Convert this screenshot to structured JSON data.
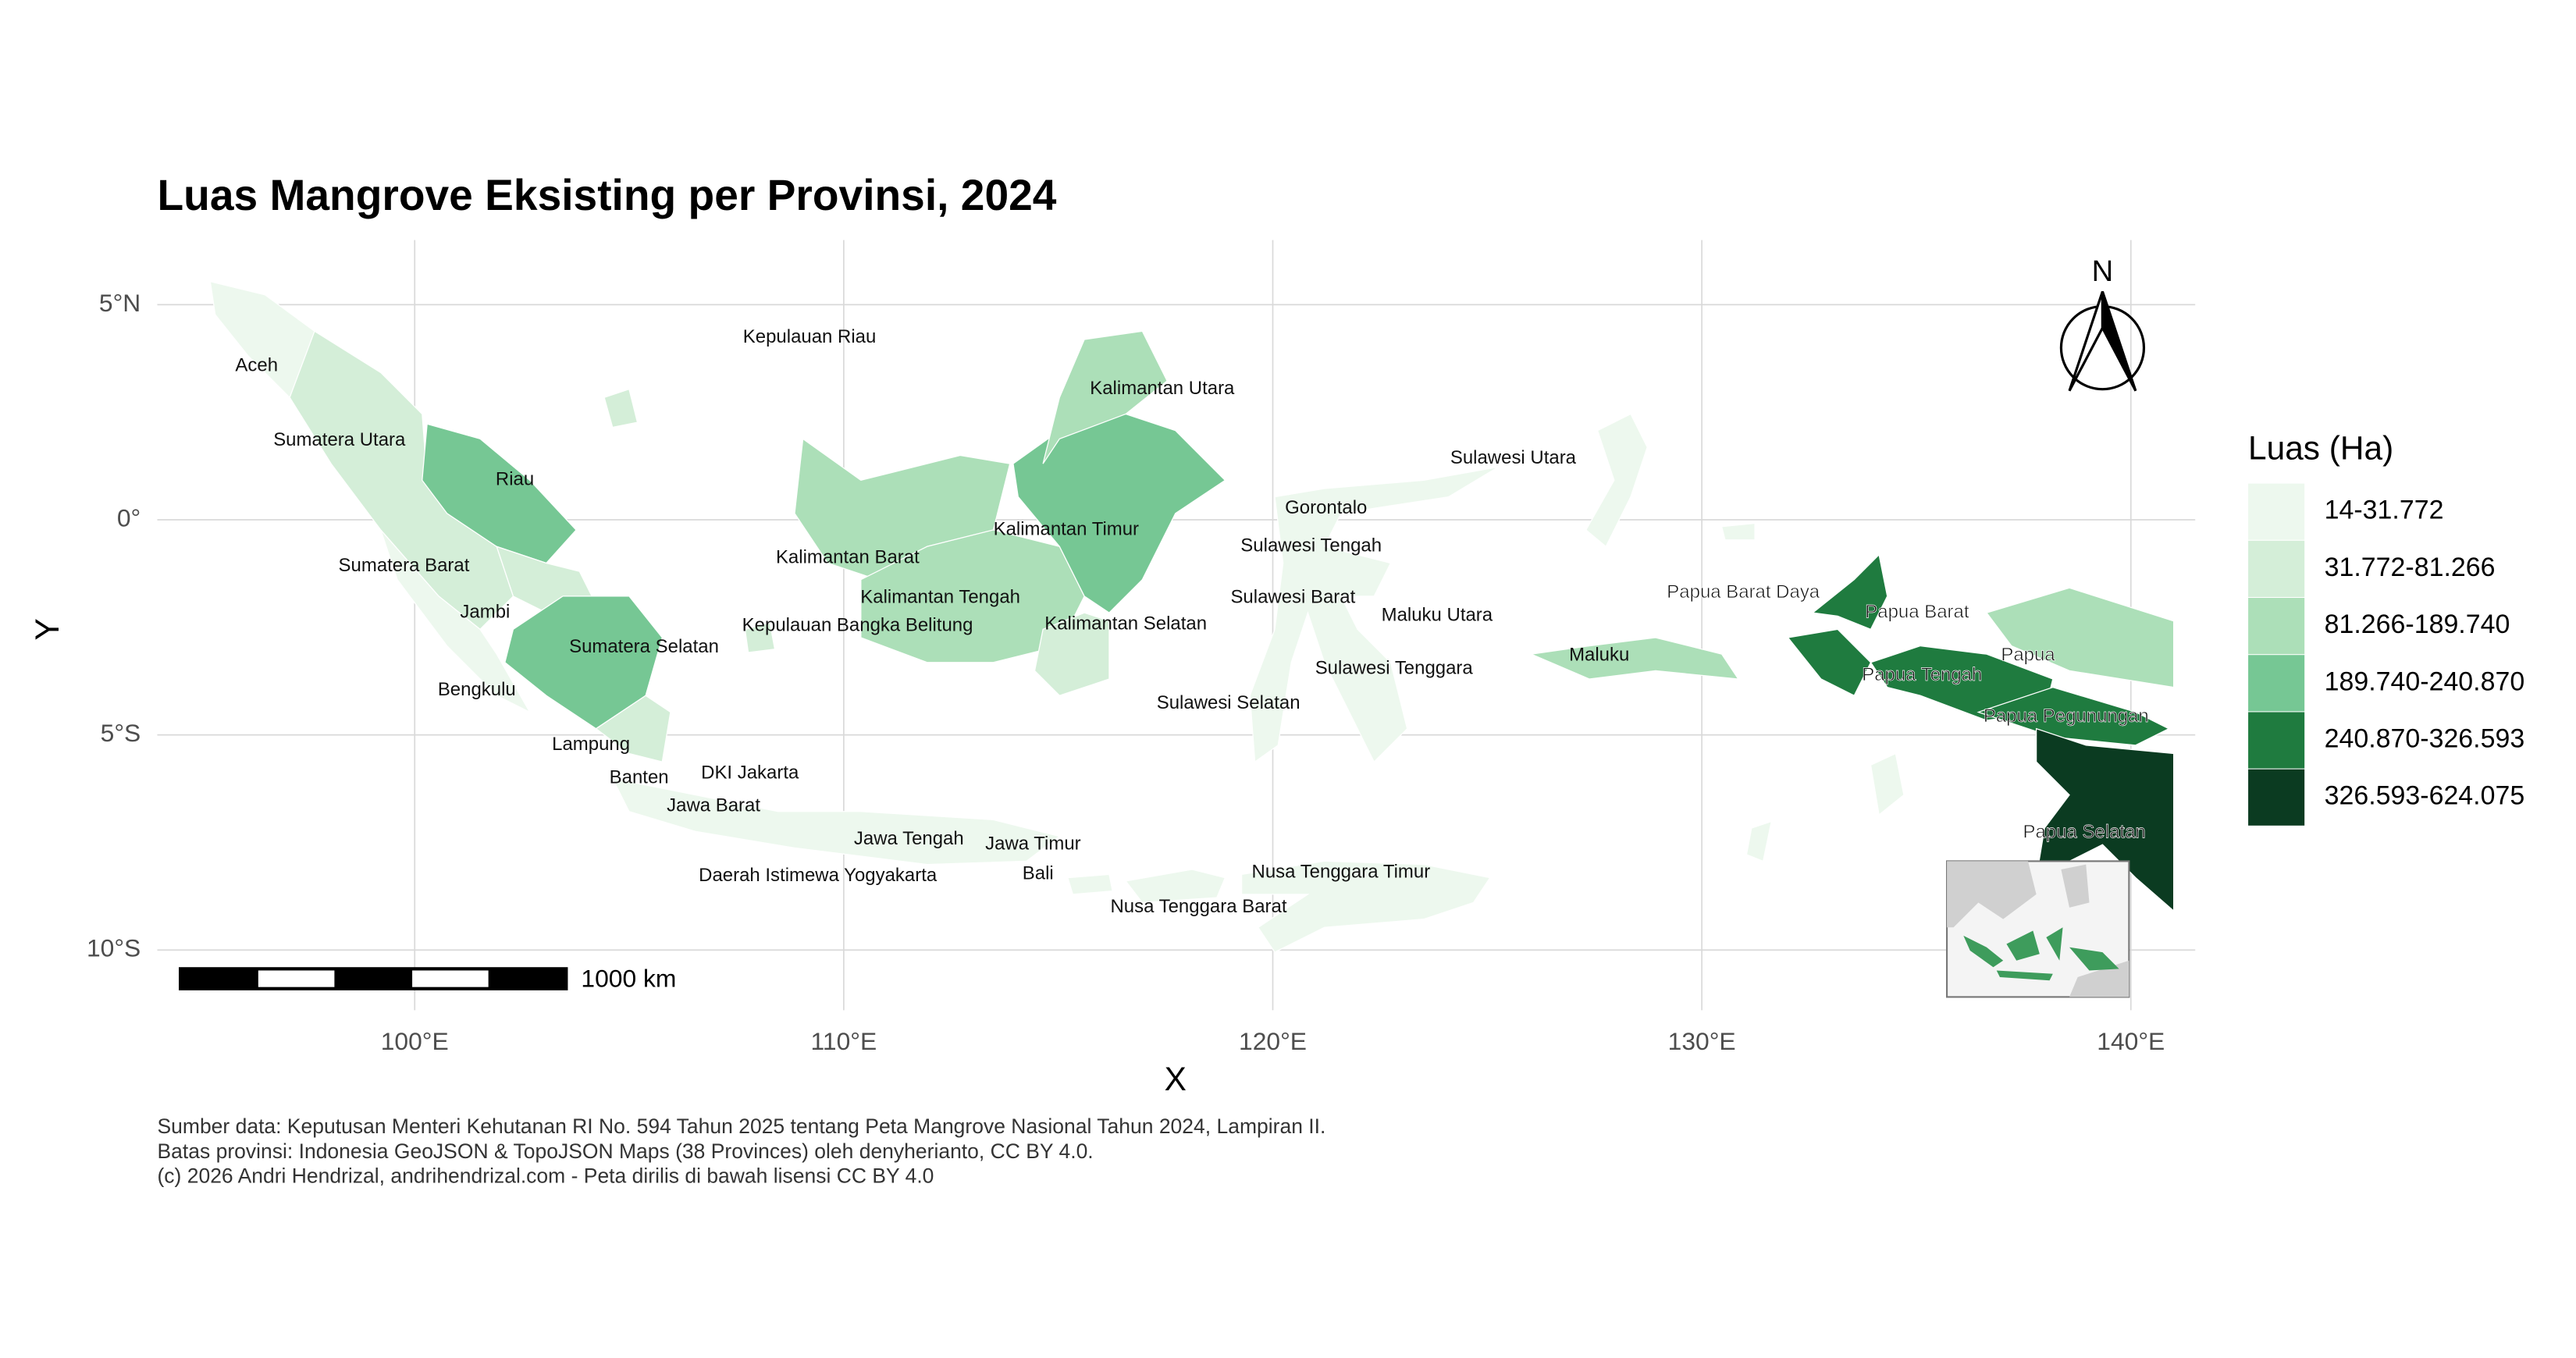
{
  "title": "Luas Mangrove Eksisting per Provinsi, 2024",
  "map": {
    "xlabel": "X",
    "ylabel": "Y",
    "xlim": [
      94.0,
      141.5
    ],
    "ylim": [
      -11.4,
      6.5
    ],
    "xticks": [
      {
        "value": 100,
        "label": "100°E"
      },
      {
        "value": 110,
        "label": "110°E"
      },
      {
        "value": 120,
        "label": "120°E"
      },
      {
        "value": 130,
        "label": "130°E"
      },
      {
        "value": 140,
        "label": "140°E"
      }
    ],
    "yticks": [
      {
        "value": 5,
        "label": "5°N"
      },
      {
        "value": 0,
        "label": "0°"
      },
      {
        "value": -5,
        "label": "5°S"
      },
      {
        "value": -10,
        "label": "10°S"
      }
    ],
    "grid": true
  },
  "provinces": [
    "Aceh",
    "Sumatera Utara",
    "Riau",
    "Sumatera Barat",
    "Jambi",
    "Sumatera Selatan",
    "Bengkulu",
    "Lampung",
    "Banten",
    "DKI Jakarta",
    "Jawa Barat",
    "Jawa Tengah",
    "Jawa Timur",
    "Daerah Istimewa Yogyakarta",
    "Bali",
    "Nusa Tenggara Barat",
    "Nusa Tenggara Timur",
    "Kepulauan Riau",
    "Kepulauan Bangka Belitung",
    "Kalimantan Barat",
    "Kalimantan Tengah",
    "Kalimantan Selatan",
    "Kalimantan Timur",
    "Kalimantan Utara",
    "Sulawesi Utara",
    "Gorontalo",
    "Sulawesi Tengah",
    "Sulawesi Barat",
    "Sulawesi Selatan",
    "Sulawesi Tenggara",
    "Maluku Utara",
    "Maluku",
    "Papua Barat Daya",
    "Papua Barat",
    "Papua Tengah",
    "Papua",
    "Papua Pegunungan",
    "Papua Selatan"
  ],
  "legend": {
    "title": "Luas (Ha)",
    "classes": [
      {
        "label": "14-31.772",
        "color": "#edf8ee"
      },
      {
        "label": "31.772-81.266",
        "color": "#d4eed8"
      },
      {
        "label": "81.266-189.740",
        "color": "#acdfb8"
      },
      {
        "label": "189.740-240.870",
        "color": "#76c794"
      },
      {
        "label": "240.870-326.593",
        "color": "#1f7b3f"
      },
      {
        "label": "326.593-624.075",
        "color": "#0b3b21"
      }
    ]
  },
  "scale_bar": {
    "label": "1000 km"
  },
  "north_arrow": {
    "label": "N"
  },
  "caption": [
    "Sumber data: Keputusan Menteri Kehutanan RI No. 594 Tahun 2025 tentang Peta Mangrove Nasional Tahun 2024, Lampiran II.",
    "Batas provinsi: Indonesia GeoJSON & TopoJSON Maps (38 Provinces) oleh denyherianto, CC BY 4.0.",
    "(c) 2026 Andri Hendrizal, andrihendrizal.com - Peta dirilis di bawah lisensi CC BY 4.0"
  ]
}
